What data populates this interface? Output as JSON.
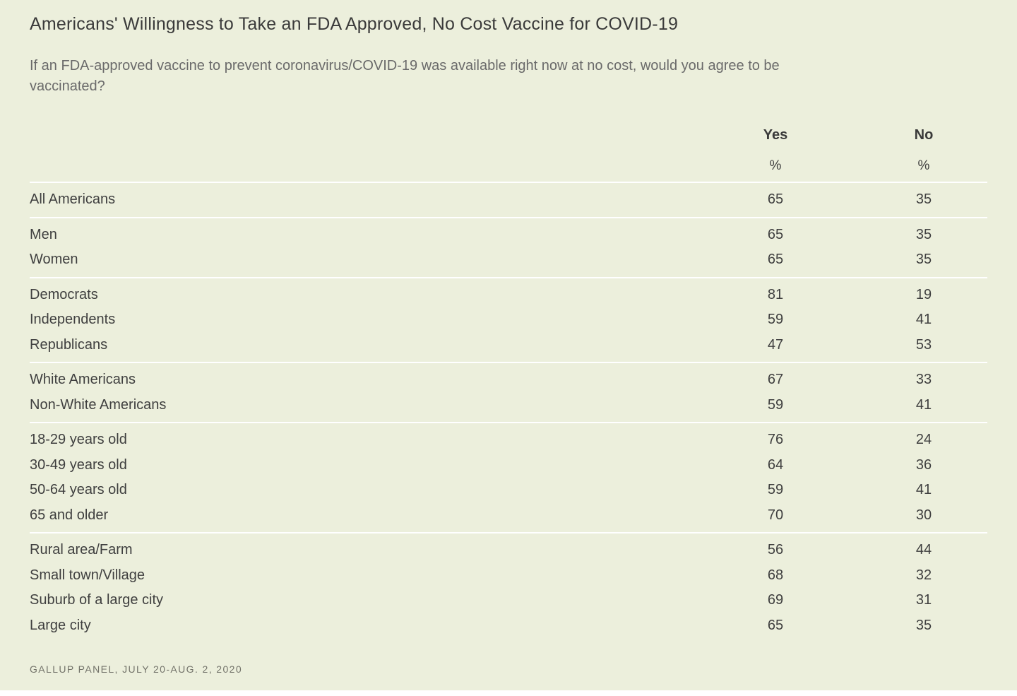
{
  "page": {
    "title": "Americans' Willingness to Take an FDA Approved, No Cost Vaccine for COVID-19",
    "subtitle": "If an FDA-approved vaccine to prevent coronavirus/COVID-19 was available right now at no cost, would you agree to be vaccinated?",
    "source": "GALLUP PANEL, JULY 20-AUG. 2, 2020"
  },
  "colors": {
    "background": "#ecefdc",
    "divider": "#ffffff",
    "text": "#3f3f3f",
    "muted_text": "#6a6a6a"
  },
  "table": {
    "columns": [
      {
        "label": "Yes",
        "unit": "%"
      },
      {
        "label": "No",
        "unit": "%"
      }
    ],
    "groups": [
      {
        "rows": [
          {
            "label": "All Americans",
            "yes": "65",
            "no": "35"
          }
        ]
      },
      {
        "rows": [
          {
            "label": "Men",
            "yes": "65",
            "no": "35"
          },
          {
            "label": "Women",
            "yes": "65",
            "no": "35"
          }
        ]
      },
      {
        "rows": [
          {
            "label": "Democrats",
            "yes": "81",
            "no": "19"
          },
          {
            "label": "Independents",
            "yes": "59",
            "no": "41"
          },
          {
            "label": "Republicans",
            "yes": "47",
            "no": "53"
          }
        ]
      },
      {
        "rows": [
          {
            "label": "White Americans",
            "yes": "67",
            "no": "33"
          },
          {
            "label": "Non-White Americans",
            "yes": "59",
            "no": "41"
          }
        ]
      },
      {
        "rows": [
          {
            "label": "18-29 years old",
            "yes": "76",
            "no": "24"
          },
          {
            "label": "30-49 years old",
            "yes": "64",
            "no": "36"
          },
          {
            "label": "50-64 years old",
            "yes": "59",
            "no": "41"
          },
          {
            "label": "65 and older",
            "yes": "70",
            "no": "30"
          }
        ]
      },
      {
        "rows": [
          {
            "label": "Rural area/Farm",
            "yes": "56",
            "no": "44"
          },
          {
            "label": "Small town/Village",
            "yes": "68",
            "no": "32"
          },
          {
            "label": "Suburb of a large city",
            "yes": "69",
            "no": "31"
          },
          {
            "label": "Large city",
            "yes": "65",
            "no": "35"
          }
        ]
      }
    ]
  },
  "chart_data": {
    "type": "table",
    "title": "Americans' Willingness to Take an FDA Approved, No Cost Vaccine for COVID-19",
    "subtitle": "If an FDA-approved vaccine to prevent coronavirus/COVID-19 was available right now at no cost, would you agree to be vaccinated?",
    "categories": [
      "All Americans",
      "Men",
      "Women",
      "Democrats",
      "Independents",
      "Republicans",
      "White Americans",
      "Non-White Americans",
      "18-29 years old",
      "30-49 years old",
      "50-64 years old",
      "65 and older",
      "Rural area/Farm",
      "Small town/Village",
      "Suburb of a large city",
      "Large city"
    ],
    "series": [
      {
        "name": "Yes",
        "values": [
          65,
          65,
          65,
          81,
          59,
          47,
          67,
          59,
          76,
          64,
          59,
          70,
          56,
          68,
          69,
          65
        ]
      },
      {
        "name": "No",
        "values": [
          35,
          35,
          35,
          19,
          41,
          53,
          33,
          41,
          24,
          36,
          41,
          30,
          44,
          32,
          31,
          35
        ]
      }
    ],
    "unit": "%",
    "source": "GALLUP PANEL, JULY 20-AUG. 2, 2020"
  }
}
